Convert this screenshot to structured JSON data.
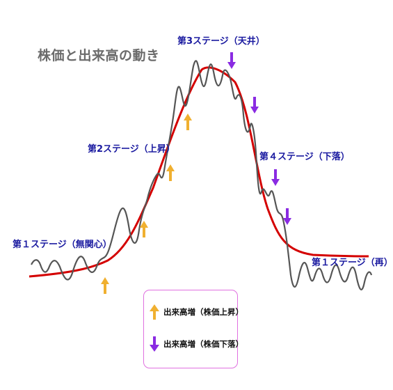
{
  "title": "株価と出来高の動き",
  "stages": {
    "stage1_start": "第１ステージ（無関心）",
    "stage2": "第2ステージ（上昇）",
    "stage3": "第3ステージ（天井）",
    "stage4": "第４ステージ（下落）",
    "stage1_again": "第１ステージ（再）"
  },
  "legend": {
    "up_label": "出来高増（株価上昇）",
    "down_label": "出来高増（株価下落）"
  },
  "colors": {
    "trend": "#d40000",
    "price": "#555555",
    "up_arrow": "#f0b030",
    "down_arrow": "#8a2be2",
    "stage_text": "#1a1aa0",
    "legend_border": "#e070e0"
  },
  "icons": {
    "up": "arrow-up-icon",
    "down": "arrow-down-icon"
  }
}
